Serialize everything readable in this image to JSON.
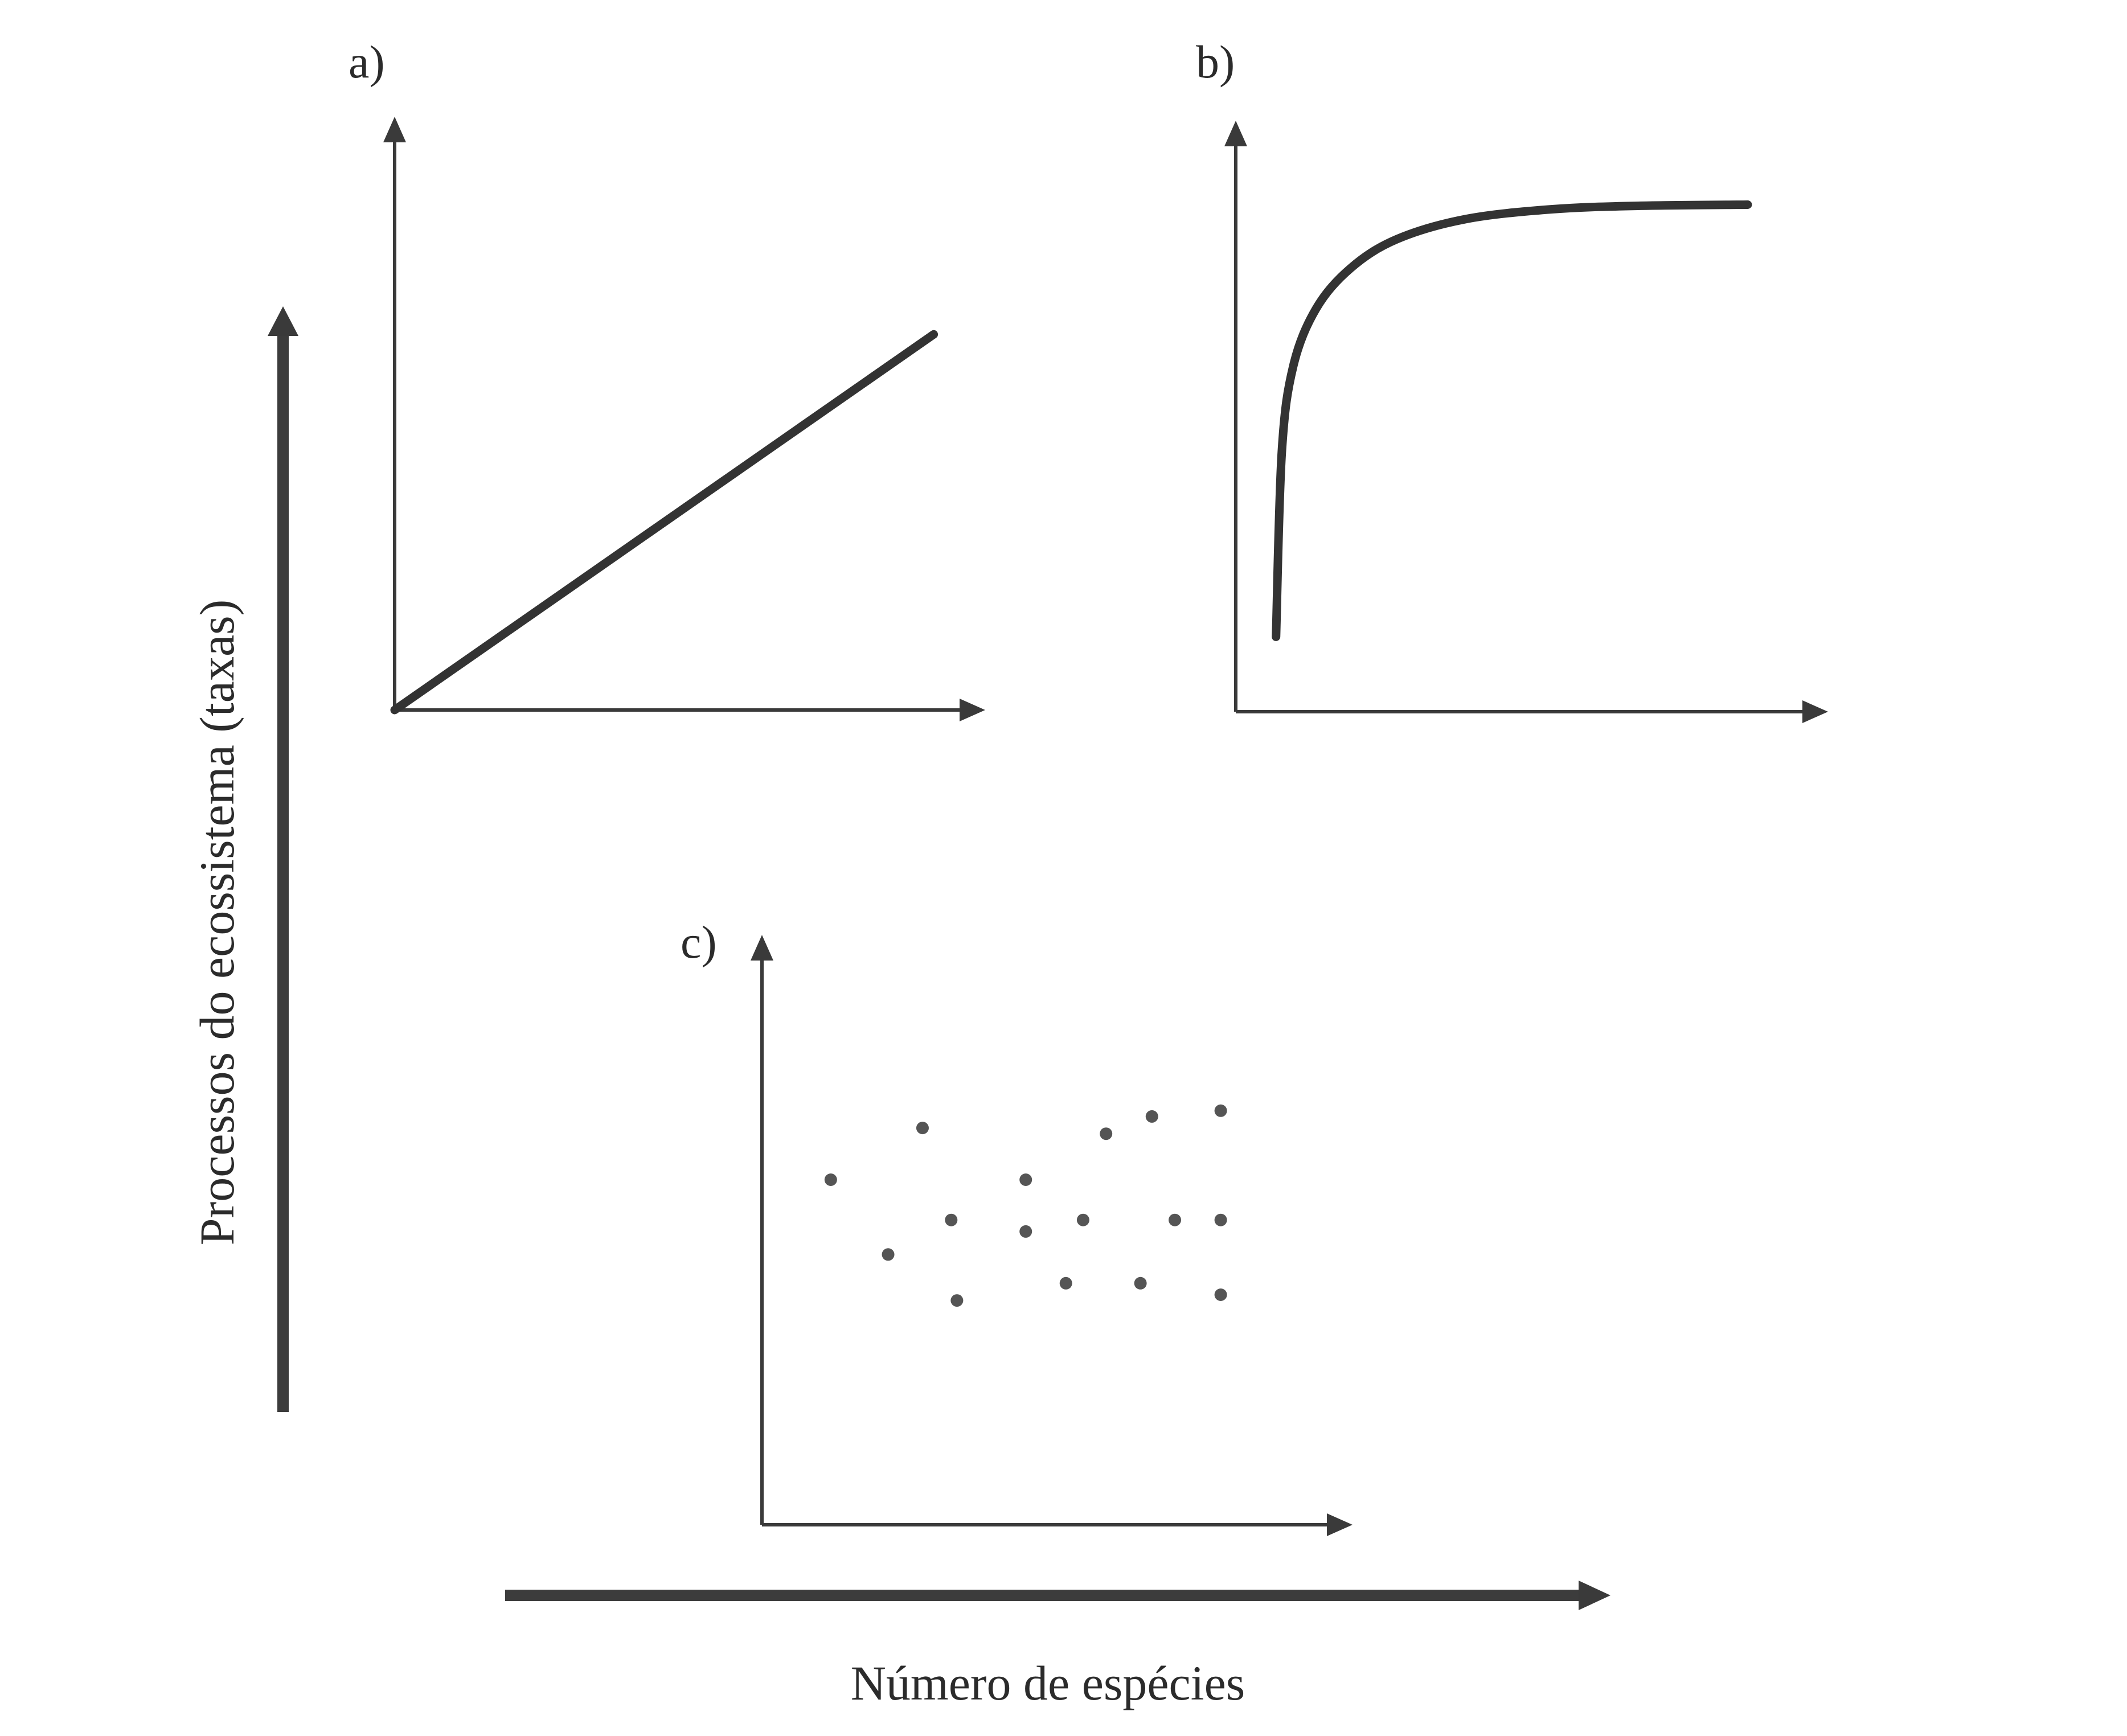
{
  "figure": {
    "shared_ylabel": "Processos do ecossistema (taxas)",
    "shared_xlabel": "Número de espécies"
  },
  "colors": {
    "ink": "#333333",
    "background": "#ffffff"
  },
  "chart_data": [
    {
      "panel": "a)",
      "type": "line",
      "title": "",
      "xlabel": "",
      "ylabel": "",
      "xlim": [
        0,
        1
      ],
      "ylim": [
        0,
        1
      ],
      "x_ticks": [],
      "y_ticks": [],
      "grid": false,
      "series": [
        {
          "points": [
            [
              0,
              0
            ],
            [
              0.94,
              0.65
            ]
          ]
        }
      ]
    },
    {
      "panel": "b)",
      "type": "line",
      "title": "",
      "xlabel": "",
      "ylabel": "",
      "xlim": [
        0,
        1
      ],
      "ylim": [
        0,
        1
      ],
      "x_ticks": [],
      "y_ticks": [],
      "grid": false,
      "series": [
        {
          "points": [
            [
              0.07,
              0.13
            ],
            [
              0.08,
              0.45
            ],
            [
              0.1,
              0.6
            ],
            [
              0.14,
              0.7
            ],
            [
              0.2,
              0.77
            ],
            [
              0.28,
              0.82
            ],
            [
              0.4,
              0.855
            ],
            [
              0.55,
              0.872
            ],
            [
              0.7,
              0.878
            ],
            [
              0.89,
              0.88
            ]
          ]
        }
      ]
    },
    {
      "panel": "c)",
      "type": "scatter",
      "title": "",
      "xlabel": "",
      "ylabel": "",
      "xlim": [
        0,
        1
      ],
      "ylim": [
        0,
        1
      ],
      "x_ticks": [],
      "y_ticks": [],
      "grid": false,
      "series": [
        {
          "points": [
            [
              0.12,
              0.6
            ],
            [
              0.22,
              0.47
            ],
            [
              0.28,
              0.69
            ],
            [
              0.33,
              0.53
            ],
            [
              0.34,
              0.39
            ],
            [
              0.46,
              0.6
            ],
            [
              0.46,
              0.51
            ],
            [
              0.53,
              0.42
            ],
            [
              0.56,
              0.53
            ],
            [
              0.6,
              0.68
            ],
            [
              0.66,
              0.42
            ],
            [
              0.68,
              0.71
            ],
            [
              0.72,
              0.53
            ],
            [
              0.8,
              0.72
            ],
            [
              0.8,
              0.53
            ],
            [
              0.8,
              0.4
            ]
          ]
        }
      ]
    }
  ]
}
